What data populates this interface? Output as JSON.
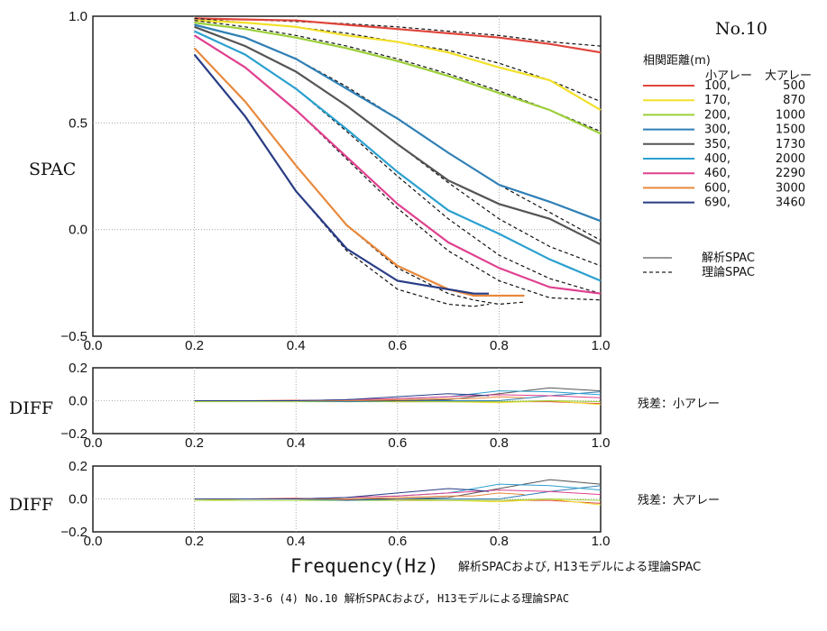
{
  "figure": {
    "panel_label": "No.10",
    "legend_title": "相関距離(m)",
    "legend_col_small": "小アレー",
    "legend_col_large": "大アレー",
    "legend_obs": "解析SPAC",
    "legend_theory": "理論SPAC",
    "residual_small_label": "残差：小アレー",
    "residual_large_label": "残差：大アレー",
    "note": "解析SPACおよび, H13モデルによる理論SPAC",
    "caption": "図3-3-6 (4) No.10 解析SPACおよび, H13モデルによる理論SPAC"
  },
  "chart_data": [
    {
      "type": "line",
      "ylabel": "SPAC",
      "xlim": [
        0.0,
        1.0
      ],
      "ylim": [
        -0.5,
        1.0
      ],
      "xticks": [
        "0.0",
        "0.2",
        "0.4",
        "0.6",
        "0.8",
        "1.0"
      ],
      "yticks": [
        "1.0",
        "0.5",
        "0.0",
        "−0.5"
      ],
      "grid": "dotted",
      "legend": "right",
      "series": [
        {
          "name": "100,    500",
          "color": "#e0453c",
          "x": [
            0.2,
            0.3,
            0.4,
            0.5,
            0.6,
            0.7,
            0.8,
            0.9,
            1.0
          ],
          "observed": [
            0.99,
            0.985,
            0.98,
            0.96,
            0.94,
            0.92,
            0.9,
            0.87,
            0.83
          ],
          "theory": [
            0.99,
            0.985,
            0.975,
            0.965,
            0.95,
            0.93,
            0.91,
            0.88,
            0.86
          ]
        },
        {
          "name": "170,    870",
          "color": "#f2e02a",
          "x": [
            0.2,
            0.3,
            0.4,
            0.5,
            0.6,
            0.7,
            0.8,
            0.9,
            1.0
          ],
          "observed": [
            0.98,
            0.97,
            0.95,
            0.91,
            0.88,
            0.83,
            0.76,
            0.7,
            0.56
          ],
          "theory": [
            0.99,
            0.97,
            0.95,
            0.92,
            0.88,
            0.84,
            0.78,
            0.7,
            0.6
          ]
        },
        {
          "name": "200,   1000",
          "color": "#9ccf3a",
          "x": [
            0.2,
            0.3,
            0.4,
            0.5,
            0.6,
            0.7,
            0.8,
            0.9,
            1.0
          ],
          "observed": [
            0.97,
            0.94,
            0.9,
            0.85,
            0.79,
            0.72,
            0.64,
            0.56,
            0.45
          ],
          "theory": [
            0.98,
            0.95,
            0.91,
            0.86,
            0.8,
            0.73,
            0.65,
            0.56,
            0.46
          ]
        },
        {
          "name": "300,   1500",
          "color": "#2f7fb5",
          "x": [
            0.2,
            0.3,
            0.4,
            0.5,
            0.6,
            0.7,
            0.8,
            0.9,
            1.0
          ],
          "observed": [
            0.96,
            0.9,
            0.8,
            0.66,
            0.52,
            0.36,
            0.21,
            0.13,
            0.04
          ],
          "theory": [
            0.96,
            0.9,
            0.8,
            0.67,
            0.52,
            0.36,
            0.21,
            0.08,
            -0.05
          ]
        },
        {
          "name": "350,   1730",
          "color": "#555555",
          "x": [
            0.2,
            0.3,
            0.4,
            0.5,
            0.6,
            0.7,
            0.8,
            0.9,
            1.0
          ],
          "observed": [
            0.95,
            0.86,
            0.74,
            0.58,
            0.4,
            0.23,
            0.12,
            0.05,
            -0.07
          ],
          "theory": [
            0.95,
            0.86,
            0.74,
            0.58,
            0.4,
            0.22,
            0.05,
            -0.08,
            -0.17
          ]
        },
        {
          "name": "400,   2000",
          "color": "#2aa0cf",
          "x": [
            0.2,
            0.3,
            0.4,
            0.5,
            0.6,
            0.7,
            0.8,
            0.9,
            1.0
          ],
          "observed": [
            0.93,
            0.82,
            0.66,
            0.47,
            0.27,
            0.09,
            -0.02,
            -0.14,
            -0.24
          ],
          "theory": [
            0.93,
            0.82,
            0.66,
            0.46,
            0.25,
            0.05,
            -0.12,
            -0.23,
            -0.3
          ]
        },
        {
          "name": "460,   2290",
          "color": "#e0408f",
          "x": [
            0.2,
            0.3,
            0.4,
            0.5,
            0.6,
            0.7,
            0.8,
            0.9,
            1.0
          ],
          "observed": [
            0.91,
            0.76,
            0.56,
            0.34,
            0.12,
            -0.06,
            -0.18,
            -0.27,
            -0.3
          ],
          "theory": [
            0.91,
            0.76,
            0.56,
            0.33,
            0.1,
            -0.1,
            -0.24,
            -0.32,
            -0.33
          ]
        },
        {
          "name": "600,   3000",
          "color": "#e8893c",
          "x": [
            0.2,
            0.3,
            0.4,
            0.5,
            0.6,
            0.7,
            0.75,
            0.8,
            0.85
          ],
          "observed": [
            0.85,
            0.6,
            0.3,
            0.02,
            -0.17,
            -0.28,
            -0.31,
            -0.31,
            -0.31
          ],
          "theory": [
            0.85,
            0.6,
            0.3,
            0.02,
            -0.18,
            -0.3,
            -0.33,
            -0.35,
            -0.34
          ]
        },
        {
          "name": "690,   3460",
          "color": "#283c85",
          "x": [
            0.2,
            0.3,
            0.4,
            0.5,
            0.6,
            0.7,
            0.75,
            0.78
          ],
          "observed": [
            0.82,
            0.53,
            0.18,
            -0.09,
            -0.24,
            -0.28,
            -0.3,
            -0.3
          ],
          "theory": [
            0.82,
            0.53,
            0.18,
            -0.1,
            -0.28,
            -0.35,
            -0.36,
            -0.35
          ]
        }
      ]
    },
    {
      "type": "line",
      "ylabel": "DIFF",
      "xlim": [
        0.0,
        1.0
      ],
      "ylim": [
        -0.2,
        0.2
      ],
      "yticks": [
        "0.2",
        "0.0",
        "−0.2"
      ],
      "xticks": [
        "0.0",
        "0.2",
        "0.4",
        "0.6",
        "0.8",
        "1.0"
      ],
      "label": "残差：小アレー"
    },
    {
      "type": "line",
      "ylabel": "DIFF",
      "xlim": [
        0.0,
        1.0
      ],
      "ylim": [
        -0.2,
        0.2
      ],
      "yticks": [
        "0.2",
        "0.0",
        "−0.2"
      ],
      "xticks": [
        "0.0",
        "0.2",
        "0.4",
        "0.6",
        "0.8",
        "1.0"
      ],
      "xlabel": "Frequency(Hz)",
      "label": "残差：大アレー"
    }
  ]
}
